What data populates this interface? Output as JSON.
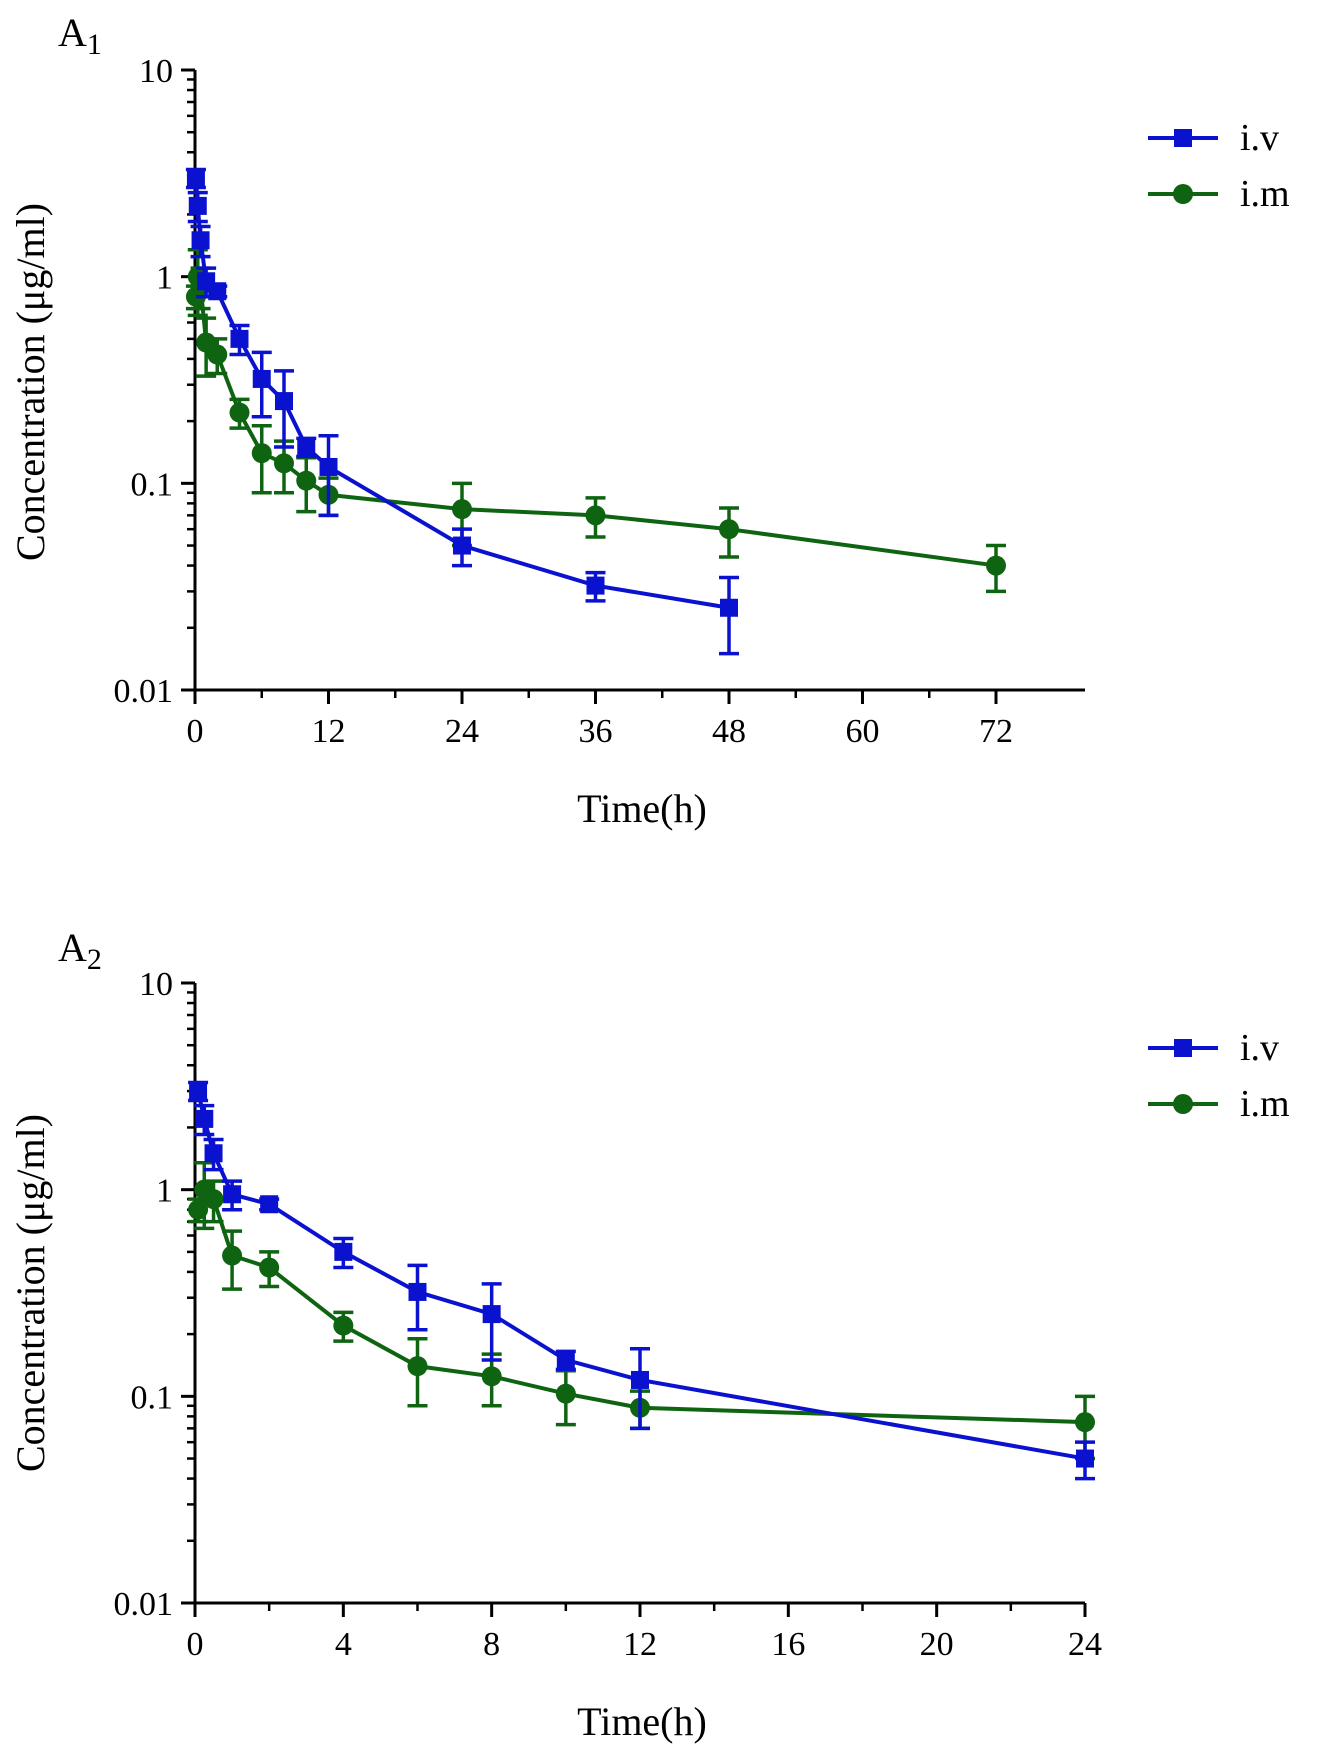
{
  "chart_data": [
    {
      "type": "line",
      "panel_label": "A",
      "panel_sub": "1",
      "xlabel": "Time(h)",
      "ylabel": "Concentration (μg/ml)",
      "yscale": "log",
      "ylim": [
        0.01,
        10
      ],
      "xlim": [
        0,
        80
      ],
      "xticks": [
        0,
        12,
        24,
        36,
        48,
        60,
        72
      ],
      "yticks": [
        {
          "value": 0.01,
          "label": "0.01"
        },
        {
          "value": 0.1,
          "label": "0.1"
        },
        {
          "value": 1,
          "label": "1"
        },
        {
          "value": 10,
          "label": "10"
        }
      ],
      "legend_position": "top-right",
      "series": [
        {
          "name": "i.v",
          "color": "#0b12cf",
          "marker": "square",
          "x": [
            0.083,
            0.25,
            0.5,
            1,
            2,
            4,
            6,
            8,
            10,
            12,
            24,
            36,
            48
          ],
          "y": [
            3.0,
            2.2,
            1.5,
            0.95,
            0.85,
            0.5,
            0.32,
            0.25,
            0.15,
            0.12,
            0.05,
            0.032,
            0.025
          ],
          "err": [
            0.3,
            0.35,
            0.25,
            0.15,
            0.05,
            0.08,
            0.11,
            0.1,
            0.015,
            0.05,
            0.01,
            0.005,
            0.01
          ]
        },
        {
          "name": "i.m",
          "color": "#0f6412",
          "marker": "circle",
          "x": [
            0.083,
            0.25,
            0.5,
            1,
            2,
            4,
            6,
            8,
            10,
            12,
            24,
            36,
            48,
            72
          ],
          "y": [
            0.8,
            1.0,
            0.9,
            0.48,
            0.42,
            0.22,
            0.14,
            0.125,
            0.103,
            0.088,
            0.075,
            0.07,
            0.06,
            0.04
          ],
          "err": [
            0.1,
            0.35,
            0.2,
            0.15,
            0.08,
            0.035,
            0.05,
            0.035,
            0.03,
            0.018,
            0.025,
            0.015,
            0.016,
            0.01
          ]
        }
      ]
    },
    {
      "type": "line",
      "panel_label": "A",
      "panel_sub": "2",
      "xlabel": "Time(h)",
      "ylabel": "Concentration (μg/ml)",
      "yscale": "log",
      "ylim": [
        0.01,
        10
      ],
      "xlim": [
        0,
        24
      ],
      "xticks": [
        0,
        4,
        8,
        12,
        16,
        20,
        24
      ],
      "yticks": [
        {
          "value": 0.01,
          "label": "0.01"
        },
        {
          "value": 0.1,
          "label": "0.1"
        },
        {
          "value": 1,
          "label": "1"
        },
        {
          "value": 10,
          "label": "10"
        }
      ],
      "legend_position": "top-right",
      "series": [
        {
          "name": "i.v",
          "color": "#0b12cf",
          "marker": "square",
          "x": [
            0.083,
            0.25,
            0.5,
            1,
            2,
            4,
            6,
            8,
            10,
            12,
            24
          ],
          "y": [
            3.0,
            2.2,
            1.5,
            0.95,
            0.85,
            0.5,
            0.32,
            0.25,
            0.15,
            0.12,
            0.05
          ],
          "err": [
            0.3,
            0.35,
            0.25,
            0.15,
            0.05,
            0.08,
            0.11,
            0.1,
            0.015,
            0.05,
            0.01
          ]
        },
        {
          "name": "i.m",
          "color": "#0f6412",
          "marker": "circle",
          "x": [
            0.083,
            0.25,
            0.5,
            1,
            2,
            4,
            6,
            8,
            10,
            12,
            24
          ],
          "y": [
            0.8,
            1.0,
            0.9,
            0.48,
            0.42,
            0.22,
            0.14,
            0.125,
            0.103,
            0.088,
            0.075
          ],
          "err": [
            0.1,
            0.35,
            0.2,
            0.15,
            0.08,
            0.035,
            0.05,
            0.035,
            0.03,
            0.018,
            0.025
          ]
        }
      ]
    }
  ]
}
